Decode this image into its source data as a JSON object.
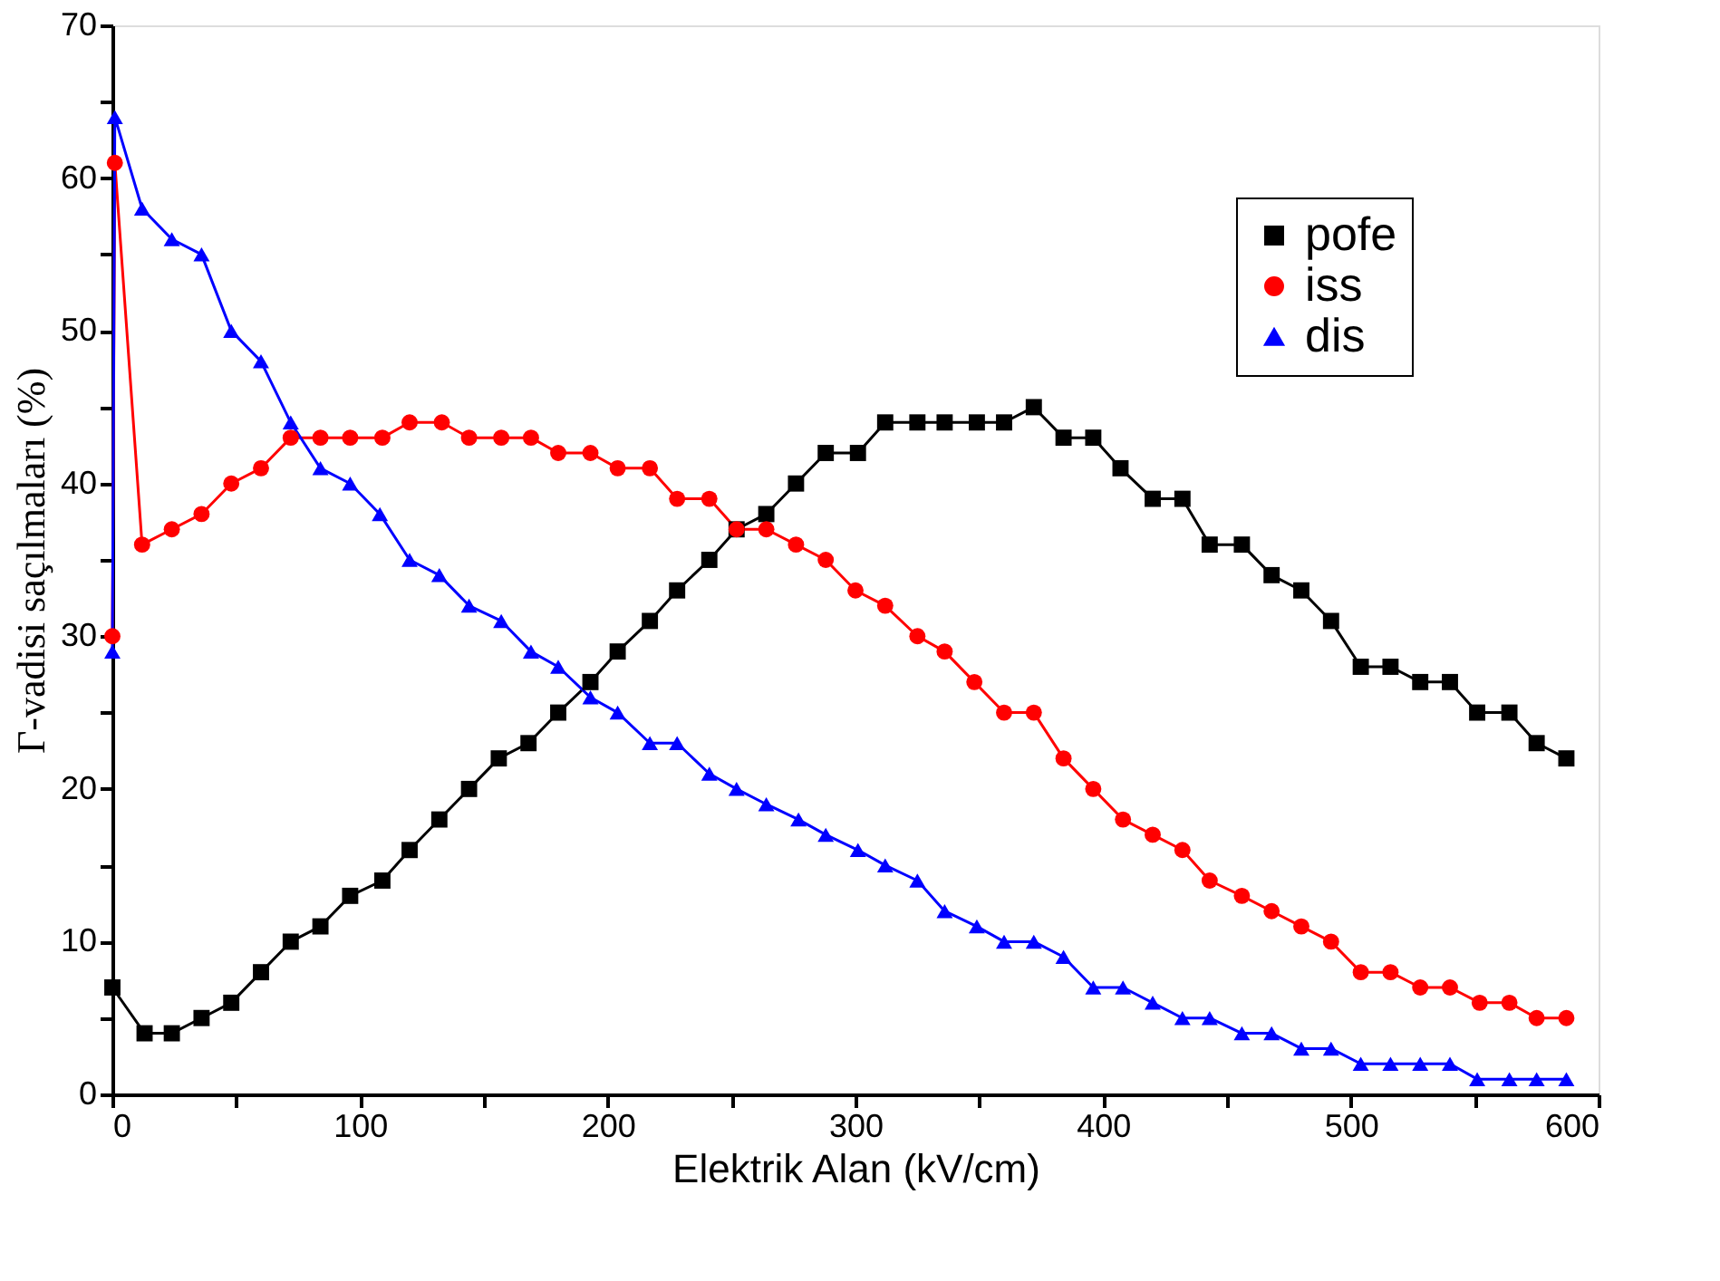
{
  "chart_data": {
    "type": "line",
    "xlabel": "Elektrik Alan (kV/cm)",
    "ylabel": "Γ-vadisi saçılmaları (%)",
    "xlim": [
      0,
      600
    ],
    "xticks": [
      0,
      {
        "value": 50,
        "label": null
      },
      100,
      {
        "value": 150,
        "label": null
      },
      200,
      {
        "value": 250,
        "label": null
      },
      300,
      {
        "value": 350,
        "label": null
      },
      400,
      {
        "value": 450,
        "label": null
      },
      500,
      {
        "value": 550,
        "label": null
      },
      600
    ],
    "ylim": [
      0,
      70
    ],
    "yticks": [
      0,
      {
        "value": 5,
        "label": null
      },
      10,
      {
        "value": 15,
        "label": null
      },
      20,
      {
        "value": 25,
        "label": null
      },
      30,
      {
        "value": 35,
        "label": null
      },
      40,
      {
        "value": 45,
        "label": null
      },
      50,
      {
        "value": 55,
        "label": null
      },
      60,
      {
        "value": 65,
        "label": null
      },
      70
    ],
    "grid": false,
    "legend": "top right",
    "line_style": "solid",
    "series": [
      {
        "name": "pofe",
        "color": "#000000",
        "marker": "square",
        "x": [
          0,
          13,
          24,
          36,
          48,
          60,
          72,
          84,
          96,
          109,
          120,
          132,
          144,
          156,
          168,
          180,
          193,
          204,
          217,
          228,
          241,
          252,
          264,
          276,
          288,
          301,
          312,
          325,
          336,
          349,
          360,
          372,
          384,
          396,
          407,
          420,
          432,
          443,
          456,
          468,
          480,
          492,
          504,
          516,
          528,
          540,
          551,
          564,
          575,
          587
        ],
        "values": [
          7,
          4,
          4,
          5,
          6,
          8,
          10,
          11,
          13,
          14,
          16,
          18,
          20,
          22,
          23,
          25,
          27,
          29,
          31,
          33,
          35,
          37,
          38,
          40,
          42,
          42,
          44,
          44,
          44,
          44,
          44,
          45,
          43,
          43,
          41,
          39,
          39,
          36,
          36,
          34,
          33,
          31,
          28,
          28,
          27,
          27,
          25,
          25,
          23,
          22
        ]
      },
      {
        "name": "iss",
        "color": "#ff0000",
        "marker": "circle",
        "x": [
          0,
          1,
          12,
          24,
          36,
          48,
          60,
          72,
          84,
          96,
          109,
          120,
          133,
          144,
          157,
          169,
          180,
          193,
          204,
          217,
          228,
          241,
          252,
          264,
          276,
          288,
          300,
          312,
          325,
          336,
          348,
          360,
          372,
          384,
          396,
          408,
          420,
          432,
          443,
          456,
          468,
          480,
          492,
          504,
          516,
          528,
          540,
          552,
          564,
          575,
          587
        ],
        "values": [
          30,
          61,
          36,
          37,
          38,
          40,
          41,
          43,
          43,
          43,
          43,
          44,
          44,
          43,
          43,
          43,
          42,
          42,
          41,
          41,
          39,
          39,
          37,
          37,
          36,
          35,
          33,
          32,
          30,
          29,
          27,
          25,
          25,
          22,
          20,
          18,
          17,
          16,
          14,
          13,
          12,
          11,
          10,
          8,
          8,
          7,
          7,
          6,
          6,
          5,
          5
        ]
      },
      {
        "name": "dis",
        "color": "#0000ff",
        "marker": "triangle",
        "x": [
          0,
          1,
          12,
          24,
          36,
          48,
          60,
          72,
          84,
          96,
          108,
          120,
          132,
          144,
          157,
          169,
          180,
          193,
          204,
          217,
          228,
          241,
          252,
          264,
          277,
          288,
          301,
          312,
          325,
          336,
          349,
          360,
          372,
          384,
          396,
          408,
          420,
          432,
          443,
          456,
          468,
          480,
          492,
          504,
          516,
          528,
          540,
          551,
          564,
          575,
          587
        ],
        "values": [
          29,
          64,
          58,
          56,
          55,
          50,
          48,
          44,
          41,
          40,
          38,
          35,
          34,
          32,
          31,
          29,
          28,
          26,
          25,
          23,
          23,
          21,
          20,
          19,
          18,
          17,
          16,
          15,
          14,
          12,
          11,
          10,
          10,
          9,
          7,
          7,
          6,
          5,
          5,
          4,
          4,
          3,
          3,
          2,
          2,
          2,
          2,
          1,
          1,
          1,
          1
        ]
      }
    ]
  }
}
